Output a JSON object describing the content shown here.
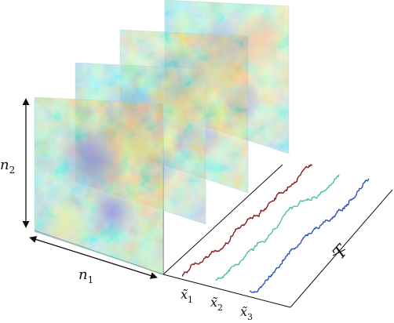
{
  "labels": {
    "n2": "n",
    "n2_sub": "2",
    "n1": "n",
    "n1_sub": "1",
    "x1": "x̃",
    "x1_sub": "1",
    "x2": "x̃",
    "x2_sub": "2",
    "x3": "x̃",
    "x3_sub": "3",
    "t": "T"
  },
  "colors": {
    "series_1": "#8b1a1a",
    "series_2": "#4fbf9a",
    "series_3": "#2b4fc4",
    "axis": "#111111",
    "field_low": "#6a4fd6",
    "field_mid": "#7ee0d2",
    "field_high": "#f3a06a"
  },
  "panels_count": 4,
  "series_count": 3
}
